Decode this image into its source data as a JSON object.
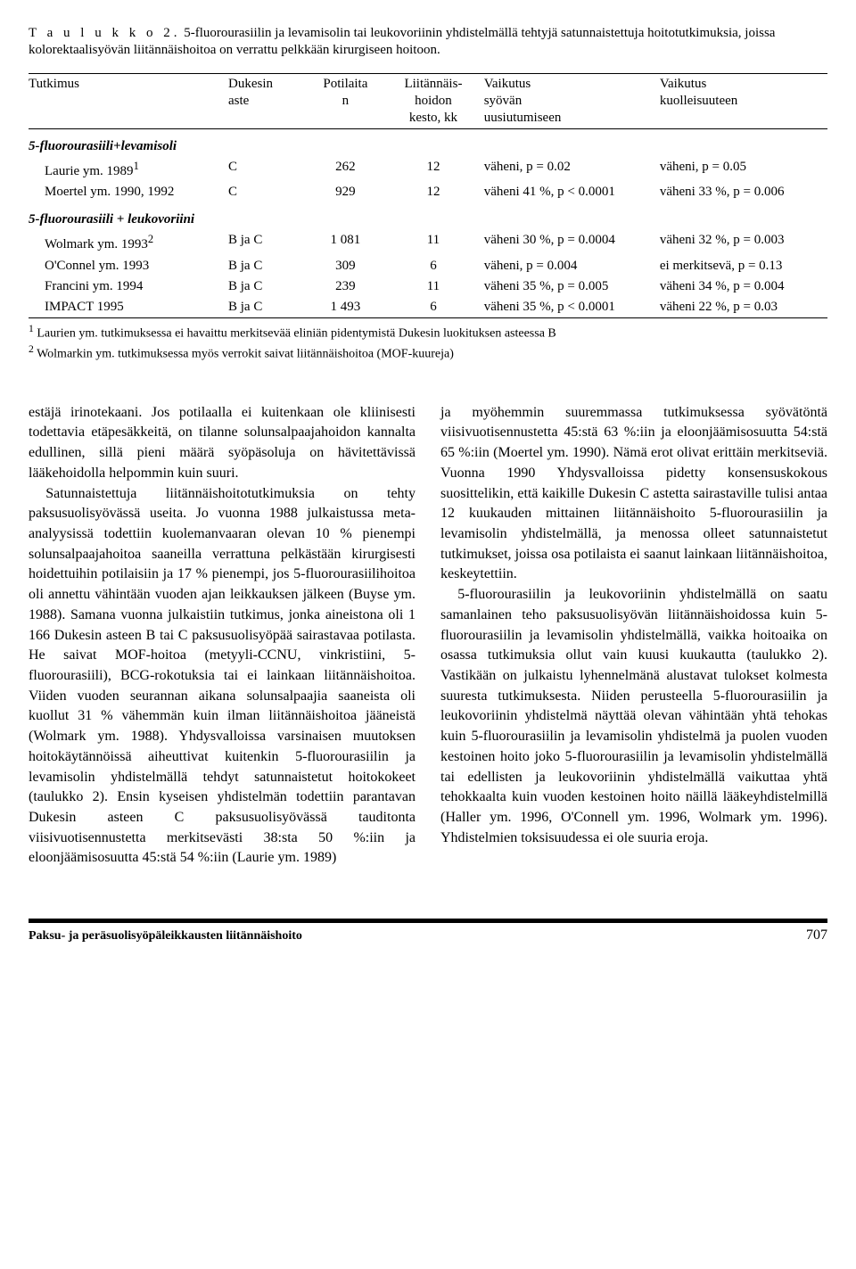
{
  "table": {
    "label": "T a u l u k k o  2.",
    "caption": "5-fluorourasiilin ja levamisolin tai leukovoriinin yhdistelmällä tehtyjä satunnaistettuja hoitotutkimuksia, joissa kolorektaalisyövän liitännäishoitoa on verrattu pelkkään kirurgiseen hoitoon.",
    "headers": {
      "study": "Tutkimus",
      "dukes_a": "Dukesin",
      "dukes_b": "aste",
      "n_a": "Potilaita",
      "n_b": "n",
      "dur_a": "Liitännäis-",
      "dur_b": "hoidon",
      "dur_c": "kesto, kk",
      "eff_recur_a": "Vaikutus",
      "eff_recur_b": "syövän",
      "eff_recur_c": "uusiutumiseen",
      "eff_mort_a": "Vaikutus",
      "eff_mort_b": "kuolleisuuteen"
    },
    "section1": "5-fluorourasiili+levamisoli",
    "rows1": [
      {
        "study": "Laurie ym. 1989",
        "sup": "1",
        "dukes": "C",
        "n": "262",
        "dur": "12",
        "recur": "väheni, p = 0.02",
        "mort": "väheni, p = 0.05"
      },
      {
        "study": "Moertel ym. 1990, 1992",
        "sup": "",
        "dukes": "C",
        "n": "929",
        "dur": "12",
        "recur": "väheni 41 %, p < 0.0001",
        "mort": "väheni 33 %, p = 0.006"
      }
    ],
    "section2": "5-fluorourasiili + leukovoriini",
    "rows2": [
      {
        "study": "Wolmark ym. 1993",
        "sup": "2",
        "dukes": "B ja C",
        "n": "1 081",
        "dur": "11",
        "recur": "väheni 30 %, p = 0.0004",
        "mort": "väheni 32 %, p = 0.003"
      },
      {
        "study": "O'Connel ym. 1993",
        "sup": "",
        "dukes": "B ja C",
        "n": "309",
        "dur": "6",
        "recur": "väheni, p = 0.004",
        "mort": "ei merkitsevä, p = 0.13"
      },
      {
        "study": "Francini ym. 1994",
        "sup": "",
        "dukes": "B ja C",
        "n": "239",
        "dur": "11",
        "recur": "väheni 35 %, p = 0.005",
        "mort": "väheni 34 %, p = 0.004"
      },
      {
        "study": "IMPACT 1995",
        "sup": "",
        "dukes": "B ja C",
        "n": "1 493",
        "dur": "6",
        "recur": "väheni 35 %, p < 0.0001",
        "mort": "väheni 22 %, p = 0.03"
      }
    ],
    "footnote1_sup": "1",
    "footnote1": " Laurien ym. tutkimuksessa ei havaittu merkitsevää eliniän pidentymistä Dukesin luokituksen asteessa B",
    "footnote2_sup": "2",
    "footnote2": " Wolmarkin ym. tutkimuksessa myös verrokit saivat liitännäishoitoa (MOF-kuureja)"
  },
  "body": {
    "left": {
      "p1": "estäjä irinotekaani. Jos potilaalla ei kuitenkaan ole kliinisesti todettavia etäpesäkkeitä, on tilanne solunsalpaajahoidon kannalta edullinen, sillä pieni määrä syöpäsoluja on hävitettävissä lääkehoidolla helpommin kuin suuri.",
      "p2": "Satunnaistettuja liitännäishoitotutkimuksia on tehty paksusuolisyövässä useita. Jo vuonna 1988 julkaistussa meta-analyysissä todettiin kuolemanvaaran olevan 10 % pienempi solunsalpaajahoitoa saaneilla verrattuna pelkästään kirurgisesti hoidettuihin potilaisiin ja 17 % pienempi, jos 5-fluorourasiilihoitoa oli annettu vähintään vuoden ajan leikkauksen jälkeen (Buyse ym. 1988). Samana vuonna julkaistiin tutkimus, jonka aineistona oli 1 166 Dukesin asteen B tai C paksusuolisyöpää sairastavaa potilasta. He saivat MOF-hoitoa (metyyli-CCNU, vinkristiini, 5-fluorourasiili), BCG-rokotuksia tai ei lainkaan liitännäishoitoa. Viiden vuoden seurannan aikana solunsalpaajia saaneista oli kuollut 31 % vähemmän kuin ilman liitännäishoitoa jääneistä (Wolmark ym. 1988). Yhdysvalloissa varsinaisen muutoksen hoitokäytännöissä aiheuttivat kuitenkin 5-fluorourasiilin ja levamisolin yhdistelmällä tehdyt satunnaistetut hoitokokeet (taulukko 2). Ensin kyseisen yhdistelmän todettiin parantavan Dukesin asteen C paksusuolisyövässä tauditonta viisivuotisennustetta merkitsevästi 38:sta 50 %:iin ja eloonjäämisosuutta 45:stä 54 %:iin (Laurie ym. 1989)"
    },
    "right": {
      "p1": "ja myöhemmin suuremmassa tutkimuksessa syövätöntä viisivuotisennustetta 45:stä 63 %:iin ja eloonjäämisosuutta 54:stä 65 %:iin (Moertel ym. 1990). Nämä erot olivat erittäin merkitseviä. Vuonna 1990 Yhdysvalloissa pidetty konsensuskokous suosittelikin, että kaikille Dukesin C astetta sairastaville tulisi antaa 12 kuukauden mittainen liitännäishoito 5-fluorourasiilin ja levamisolin yhdistelmällä, ja menossa olleet satunnaistetut tutkimukset, joissa osa potilaista ei saanut lainkaan liitännäishoitoa, keskeytettiin.",
      "p2": "5-fluorourasiilin ja leukovoriinin yhdistelmällä on saatu samanlainen teho paksusuolisyövän liitännäishoidossa kuin 5-fluorourasiilin ja levamisolin yhdistelmällä, vaikka hoitoaika on osassa tutkimuksia ollut vain kuusi kuukautta (taulukko 2). Vastikään on julkaistu lyhennelmänä alustavat tulokset kolmesta suuresta tutkimuksesta. Niiden perusteella 5-fluorourasiilin ja leukovoriinin yhdistelmä näyttää olevan vähintään yhtä tehokas kuin 5-fluorourasiilin ja levamisolin yhdistelmä ja puolen vuoden kestoinen hoito joko 5-fluorourasiilin ja levamisolin yhdistelmällä tai edellisten ja leukovoriinin yhdistelmällä vaikuttaa yhtä tehokkaalta kuin vuoden kestoinen hoito näillä lääkeyhdistelmillä (Haller ym. 1996, O'Connell ym. 1996, Wolmark ym. 1996). Yhdistelmien toksisuudessa ei ole suuria eroja."
    }
  },
  "footer": {
    "title": "Paksu- ja peräsuolisyöpäleikkausten liitännäishoito",
    "page": "707"
  }
}
